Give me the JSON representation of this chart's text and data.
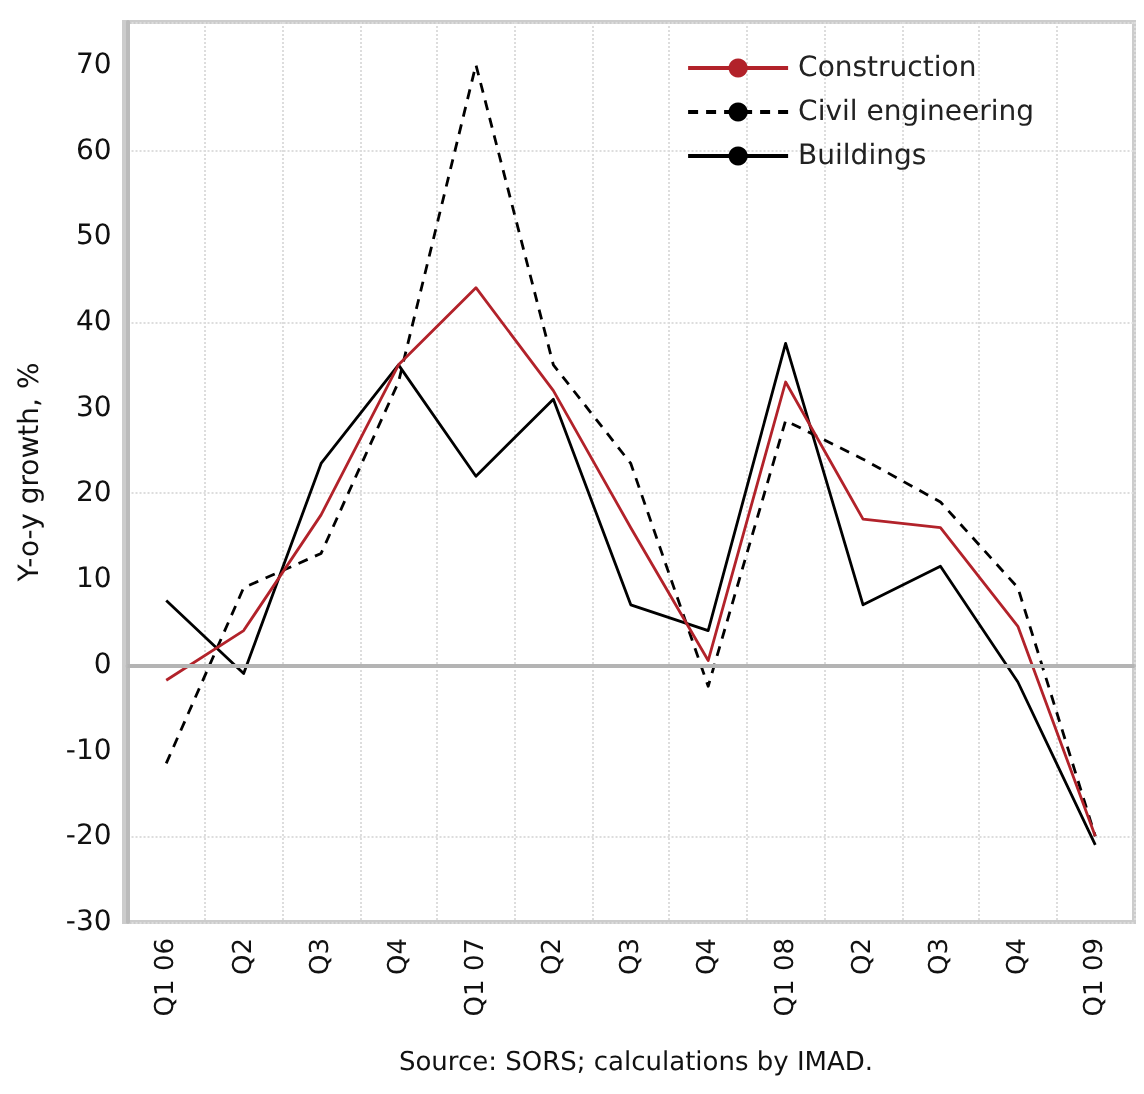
{
  "chart_data": {
    "type": "line",
    "ylabel": "Y-o-y growth, %",
    "categories": [
      "Q1 06",
      "Q2",
      "Q3",
      "Q4",
      "Q1 07",
      "Q2",
      "Q3",
      "Q4",
      "Q1 08",
      "Q2",
      "Q3",
      "Q4",
      "Q1 09"
    ],
    "series": [
      {
        "name": "Construction",
        "color": "#b2222a",
        "line_style": "solid",
        "values": [
          -1.8,
          4,
          17.5,
          35,
          44,
          32,
          16,
          0.5,
          33,
          17,
          16,
          4.5,
          -20
        ]
      },
      {
        "name": "Civil engineering",
        "color": "#000000",
        "line_style": "dashed",
        "values": [
          -11.5,
          9,
          13,
          33,
          70,
          35,
          23.5,
          -2.5,
          28.5,
          24,
          19,
          9,
          -20
        ]
      },
      {
        "name": "Buildings",
        "color": "#000000",
        "line_style": "solid",
        "values": [
          7.5,
          -1,
          23.5,
          35,
          22,
          31,
          7,
          4,
          37.5,
          7,
          11.5,
          -2,
          -21
        ]
      }
    ],
    "ylim": [
      -30,
      75
    ],
    "yticks": [
      -30,
      -20,
      -10,
      0,
      10,
      20,
      30,
      40,
      50,
      60,
      70
    ],
    "ref_lines": [
      {
        "axis": "y",
        "value": 0,
        "color": "#b4b4b4"
      }
    ],
    "grid": true,
    "legend": "top right",
    "marker": "none",
    "annotations": [
      "Source: SORS; calculations by IMAD."
    ]
  }
}
